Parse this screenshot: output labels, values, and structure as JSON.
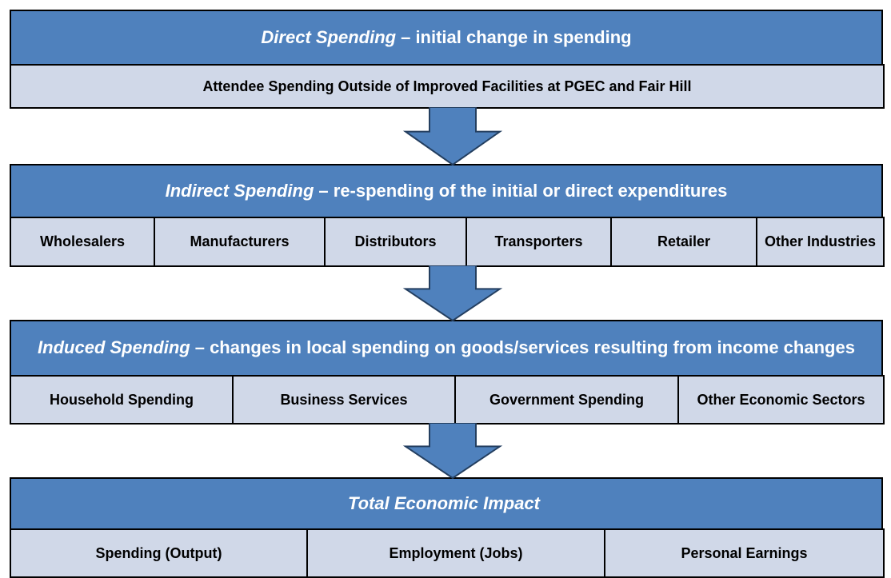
{
  "sections": [
    {
      "lead": "Direct Spending",
      "text": "– initial change in spending",
      "cells": [
        "Attendee Spending Outside of Improved Facilities at PGEC and Fair Hill"
      ]
    },
    {
      "lead": "Indirect Spending",
      "text": "– re-spending of the initial or direct expenditures",
      "cells": [
        "Wholesalers",
        "Manufacturers",
        "Distributors",
        "Transporters",
        "Retailer",
        "Other Industries"
      ]
    },
    {
      "lead": "Induced Spending",
      "text": "– changes in local spending on goods/services resulting from income changes",
      "cells": [
        "Household Spending",
        "Business Services",
        "Government Spending",
        "Other Economic Sectors"
      ]
    },
    {
      "lead": "Total Economic Impact",
      "text": "",
      "cells": [
        "Spending (Output)",
        "Employment (Jobs)",
        "Personal Earnings"
      ]
    }
  ]
}
